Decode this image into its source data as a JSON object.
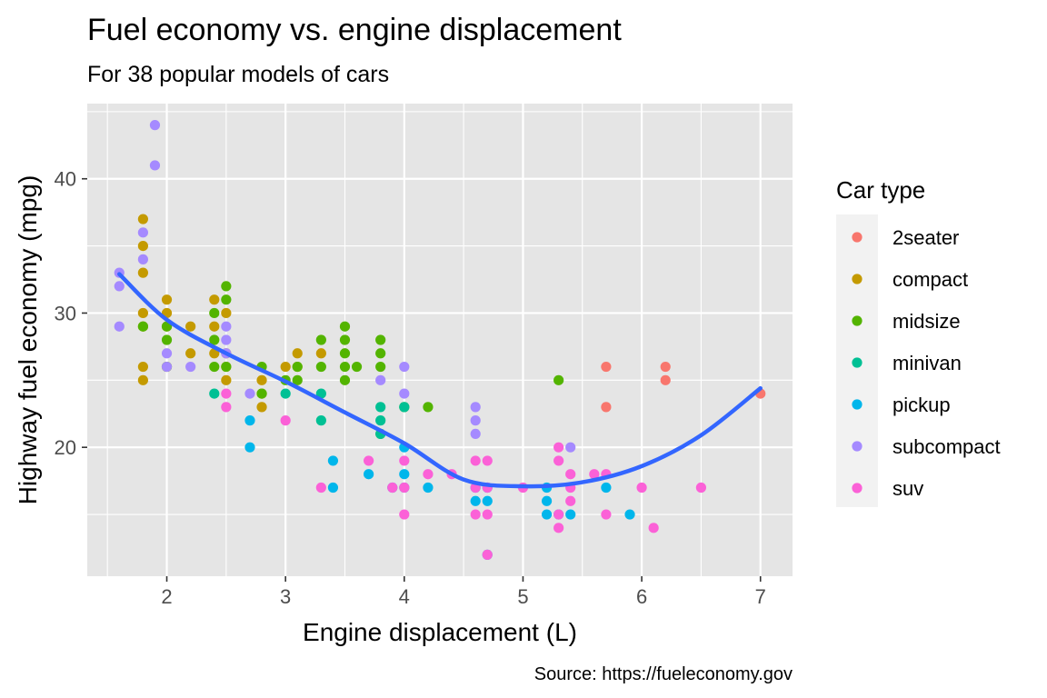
{
  "chart_data": {
    "type": "scatter",
    "title": "Fuel economy vs. engine displacement",
    "subtitle": "For 38 popular models of cars",
    "xlabel": "Engine displacement (L)",
    "ylabel": "Highway fuel economy (mpg)",
    "caption": "Source: https://fueleconomy.gov",
    "xlim": [
      1.33,
      7.27
    ],
    "ylim": [
      10.4,
      45.6
    ],
    "xticks": [
      2,
      3,
      4,
      5,
      6,
      7
    ],
    "yticks": [
      20,
      30,
      40
    ],
    "grid": true,
    "background": "#e5e5e5",
    "legend": {
      "title": "Car type",
      "position": "right",
      "entries": [
        {
          "name": "2seater",
          "color": "#F8766D"
        },
        {
          "name": "compact",
          "color": "#C49A00"
        },
        {
          "name": "midsize",
          "color": "#53B400"
        },
        {
          "name": "minivan",
          "color": "#00C094"
        },
        {
          "name": "pickup",
          "color": "#00B6EB"
        },
        {
          "name": "subcompact",
          "color": "#A58AFF"
        },
        {
          "name": "suv",
          "color": "#FB61D7"
        }
      ]
    },
    "series": [
      {
        "name": "2seater",
        "color": "#F8766D",
        "points": [
          [
            5.7,
            26
          ],
          [
            5.7,
            23
          ],
          [
            6.2,
            26
          ],
          [
            6.2,
            25
          ],
          [
            7.0,
            24
          ]
        ]
      },
      {
        "name": "compact",
        "color": "#C49A00",
        "points": [
          [
            1.8,
            37
          ],
          [
            1.8,
            35
          ],
          [
            1.8,
            33
          ],
          [
            1.8,
            30
          ],
          [
            1.8,
            29
          ],
          [
            1.8,
            26
          ],
          [
            1.8,
            25
          ],
          [
            2.0,
            31
          ],
          [
            2.0,
            30
          ],
          [
            2.0,
            29
          ],
          [
            2.0,
            26
          ],
          [
            2.2,
            29
          ],
          [
            2.2,
            27
          ],
          [
            2.4,
            31
          ],
          [
            2.4,
            29
          ],
          [
            2.4,
            27
          ],
          [
            2.5,
            30
          ],
          [
            2.5,
            27
          ],
          [
            2.5,
            26
          ],
          [
            2.5,
            25
          ],
          [
            2.8,
            25
          ],
          [
            2.8,
            24
          ],
          [
            2.8,
            23
          ],
          [
            3.0,
            26
          ],
          [
            3.1,
            27
          ],
          [
            3.1,
            26
          ],
          [
            3.3,
            27
          ]
        ]
      },
      {
        "name": "midsize",
        "color": "#53B400",
        "points": [
          [
            1.8,
            29
          ],
          [
            2.0,
            29
          ],
          [
            2.0,
            28
          ],
          [
            2.0,
            26
          ],
          [
            2.4,
            30
          ],
          [
            2.4,
            28
          ],
          [
            2.4,
            26
          ],
          [
            2.5,
            32
          ],
          [
            2.5,
            31
          ],
          [
            2.5,
            26
          ],
          [
            2.8,
            26
          ],
          [
            2.8,
            24
          ],
          [
            3.0,
            25
          ],
          [
            3.1,
            26
          ],
          [
            3.1,
            25
          ],
          [
            3.3,
            28
          ],
          [
            3.3,
            26
          ],
          [
            3.5,
            29
          ],
          [
            3.5,
            28
          ],
          [
            3.5,
            27
          ],
          [
            3.5,
            26
          ],
          [
            3.5,
            25
          ],
          [
            3.6,
            26
          ],
          [
            3.8,
            28
          ],
          [
            3.8,
            27
          ],
          [
            3.8,
            26
          ],
          [
            3.8,
            21
          ],
          [
            4.0,
            23
          ],
          [
            4.2,
            23
          ],
          [
            5.3,
            25
          ]
        ]
      },
      {
        "name": "minivan",
        "color": "#00C094",
        "points": [
          [
            2.4,
            24
          ],
          [
            3.0,
            24
          ],
          [
            3.3,
            24
          ],
          [
            3.3,
            22
          ],
          [
            3.8,
            23
          ],
          [
            3.8,
            22
          ],
          [
            3.8,
            21
          ],
          [
            4.0,
            23
          ]
        ]
      },
      {
        "name": "pickup",
        "color": "#00B6EB",
        "points": [
          [
            2.7,
            22
          ],
          [
            2.7,
            20
          ],
          [
            3.4,
            19
          ],
          [
            3.4,
            17
          ],
          [
            3.7,
            18
          ],
          [
            3.9,
            17
          ],
          [
            4.0,
            20
          ],
          [
            4.0,
            18
          ],
          [
            4.0,
            17
          ],
          [
            4.2,
            17
          ],
          [
            4.6,
            17
          ],
          [
            4.6,
            16
          ],
          [
            4.7,
            17
          ],
          [
            4.7,
            16
          ],
          [
            4.7,
            12
          ],
          [
            5.2,
            17
          ],
          [
            5.2,
            16
          ],
          [
            5.2,
            15
          ],
          [
            5.3,
            15
          ],
          [
            5.4,
            15
          ],
          [
            5.7,
            17
          ],
          [
            5.9,
            15
          ]
        ]
      },
      {
        "name": "subcompact",
        "color": "#A58AFF",
        "points": [
          [
            1.6,
            33
          ],
          [
            1.6,
            32
          ],
          [
            1.6,
            29
          ],
          [
            1.8,
            36
          ],
          [
            1.8,
            34
          ],
          [
            1.9,
            44
          ],
          [
            1.9,
            41
          ],
          [
            2.0,
            27
          ],
          [
            2.0,
            26
          ],
          [
            2.2,
            26
          ],
          [
            2.5,
            29
          ],
          [
            2.5,
            28
          ],
          [
            2.5,
            27
          ],
          [
            2.7,
            24
          ],
          [
            3.8,
            25
          ],
          [
            4.0,
            26
          ],
          [
            4.0,
            24
          ],
          [
            4.6,
            23
          ],
          [
            4.6,
            22
          ],
          [
            4.6,
            21
          ],
          [
            5.4,
            20
          ]
        ]
      },
      {
        "name": "suv",
        "color": "#FB61D7",
        "points": [
          [
            2.5,
            24
          ],
          [
            2.5,
            23
          ],
          [
            3.0,
            22
          ],
          [
            3.3,
            17
          ],
          [
            3.7,
            19
          ],
          [
            3.9,
            17
          ],
          [
            4.0,
            19
          ],
          [
            4.0,
            17
          ],
          [
            4.0,
            15
          ],
          [
            4.2,
            18
          ],
          [
            4.4,
            18
          ],
          [
            4.6,
            19
          ],
          [
            4.6,
            17
          ],
          [
            4.6,
            15
          ],
          [
            4.7,
            19
          ],
          [
            4.7,
            17
          ],
          [
            4.7,
            15
          ],
          [
            4.7,
            12
          ],
          [
            5.0,
            17
          ],
          [
            5.3,
            20
          ],
          [
            5.3,
            19
          ],
          [
            5.3,
            15
          ],
          [
            5.3,
            14
          ],
          [
            5.4,
            18
          ],
          [
            5.4,
            17
          ],
          [
            5.4,
            16
          ],
          [
            5.6,
            18
          ],
          [
            5.7,
            18
          ],
          [
            5.7,
            15
          ],
          [
            6.0,
            17
          ],
          [
            6.1,
            14
          ],
          [
            6.5,
            17
          ]
        ]
      }
    ],
    "smooth": {
      "name": "loess",
      "color": "#3366FF",
      "points": [
        [
          1.6,
          32.9
        ],
        [
          2.0,
          29.5
        ],
        [
          2.5,
          27.0
        ],
        [
          3.0,
          24.9
        ],
        [
          3.5,
          22.6
        ],
        [
          4.0,
          20.3
        ],
        [
          4.5,
          17.6
        ],
        [
          5.0,
          17.1
        ],
        [
          5.5,
          17.4
        ],
        [
          6.0,
          18.6
        ],
        [
          6.5,
          20.9
        ],
        [
          7.0,
          24.4
        ]
      ]
    }
  }
}
